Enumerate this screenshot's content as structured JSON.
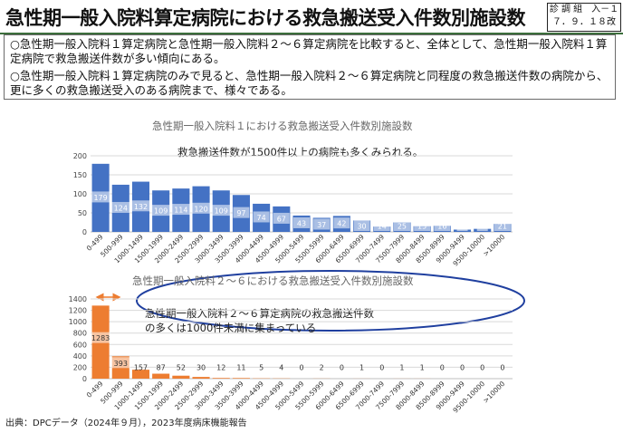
{
  "header": {
    "title": "急性期一般入院料算定病院における救急搬送受入件数別施設数",
    "doc_id": [
      "診 調 組　入－１",
      "７．９．１８改"
    ]
  },
  "summary": {
    "points": [
      "○急性期一般入院料１算定病院と急性期一般入院料２～６算定病院を比較すると、全体として、急性期一般入院料１算定病院で救急搬送件数が多い傾向にある。",
      "○急性期一般入院料１算定病院のみで見ると、急性期一般入院料２～６算定病院と同程度の救急搬送件数の病院から、更に多くの救急搬送受入のある病院まで、様々である。"
    ]
  },
  "charts": {
    "top": {
      "annotation": "救急搬送件数が1500件以上の病院も多くみられる。"
    },
    "bottom": {
      "annotation": [
        "急性期一般入院料２～６算定病院の救急搬送件数",
        "の多くは1000件未満に集まっている"
      ]
    }
  },
  "chart_data": [
    {
      "type": "bar",
      "title": "急性期一般入院料１における救急搬送受入件数別施設数",
      "categories": [
        "0-499",
        "500-999",
        "1000-1499",
        "1500-1999",
        "2000-2499",
        "2500-2999",
        "3000-3499",
        "3500-3999",
        "4000-4499",
        "4500-4999",
        "5000-5499",
        "5500-5999",
        "6000-6499",
        "6500-6999",
        "7000-7499",
        "7500-7999",
        "8000-8499",
        "8500-8999",
        "9000-9499",
        "9500-10000",
        ">10000"
      ],
      "values": [
        179,
        124,
        132,
        109,
        114,
        120,
        109,
        97,
        74,
        67,
        43,
        37,
        42,
        30,
        14,
        25,
        15,
        16,
        6,
        8,
        21
      ],
      "ylim": [
        0,
        200
      ],
      "yticks": [
        0,
        50,
        100,
        150,
        200
      ],
      "color": "#4472c4",
      "grid": true
    },
    {
      "type": "bar",
      "title": "急性期一般入院料２～６における救急搬送受入件数別施設数",
      "categories": [
        "0-499",
        "500-999",
        "1000-1499",
        "1500-1999",
        "2000-2499",
        "2500-2999",
        "3000-3499",
        "3500-3999",
        "4000-4499",
        "4500-4999",
        "5000-5499",
        "5500-5999",
        "6000-6499",
        "6500-6999",
        "7000-7499",
        "7500-7999",
        "8000-8499",
        "8500-8999",
        "9000-9499",
        "9500-10000",
        ">10000"
      ],
      "values": [
        1283,
        393,
        157,
        87,
        52,
        30,
        12,
        11,
        5,
        4,
        0,
        2,
        0,
        1,
        0,
        1,
        1,
        0,
        0,
        0,
        0
      ],
      "ylim": [
        0,
        1400
      ],
      "yticks": [
        0,
        200,
        400,
        600,
        800,
        1000,
        1200,
        1400
      ],
      "color": "#ed7d31",
      "grid": true
    }
  ],
  "source": "出典：DPCデータ（2024年９月），2023年度病床機能報告"
}
